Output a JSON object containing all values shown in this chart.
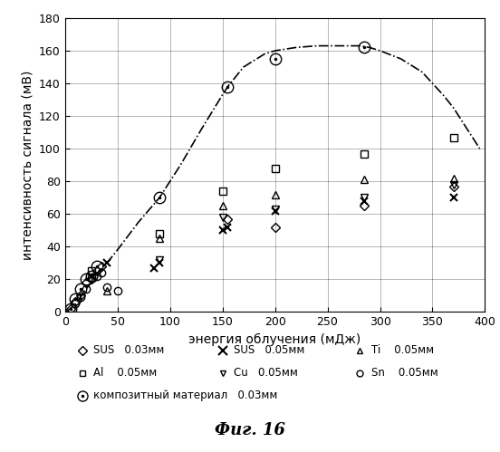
{
  "title": "Фиг. 16",
  "xlabel": "энергия облучения (мДж)",
  "ylabel": "интенсивность сигнала (мВ)",
  "xlim": [
    0,
    400
  ],
  "ylim": [
    0,
    180
  ],
  "xticks": [
    0,
    50,
    100,
    150,
    200,
    250,
    300,
    350,
    400
  ],
  "yticks": [
    0,
    20,
    40,
    60,
    80,
    100,
    120,
    140,
    160,
    180
  ],
  "SUS_003": {
    "x": [
      5,
      10,
      15,
      20,
      25,
      30,
      35,
      155,
      200,
      285,
      370
    ],
    "y": [
      2,
      6,
      10,
      18,
      20,
      25,
      28,
      57,
      52,
      65,
      77
    ]
  },
  "SUS_005": {
    "x": [
      25,
      40,
      85,
      90,
      150,
      155,
      200,
      285,
      370
    ],
    "y": [
      22,
      30,
      27,
      30,
      50,
      52,
      62,
      68,
      70
    ]
  },
  "Al_005": {
    "x": [
      25,
      90,
      150,
      200,
      285,
      370
    ],
    "y": [
      25,
      48,
      74,
      88,
      97,
      107
    ]
  },
  "Cu_005": {
    "x": [
      90,
      150,
      200,
      285,
      370
    ],
    "y": [
      32,
      58,
      63,
      70,
      78
    ]
  },
  "Ti_005": {
    "x": [
      40,
      90,
      150,
      200,
      285,
      370
    ],
    "y": [
      13,
      45,
      65,
      72,
      81,
      82
    ]
  },
  "Sn_005": {
    "x": [
      10,
      15,
      20,
      25,
      30,
      35,
      40,
      50
    ],
    "y": [
      5,
      9,
      14,
      21,
      22,
      24,
      15,
      13
    ]
  },
  "composite_003": {
    "x": [
      5,
      10,
      15,
      20,
      25,
      30,
      90,
      155,
      200,
      285
    ],
    "y": [
      2,
      8,
      14,
      20,
      22,
      28,
      70,
      138,
      155,
      162
    ]
  },
  "curve": {
    "x": [
      0,
      5,
      10,
      15,
      20,
      25,
      30,
      40,
      50,
      70,
      90,
      110,
      130,
      150,
      155,
      170,
      190,
      200,
      220,
      240,
      260,
      280,
      290,
      300,
      320,
      340,
      360,
      370,
      380,
      395
    ],
    "y": [
      0,
      2,
      5,
      9,
      14,
      18,
      23,
      30,
      38,
      55,
      70,
      90,
      112,
      133,
      138,
      150,
      158,
      160,
      162,
      163,
      163,
      163,
      162,
      160,
      155,
      147,
      133,
      125,
      115,
      100
    ]
  },
  "legend_col1": [
    {
      "marker": "D",
      "label": "◇ SUS   0.03мм"
    },
    {
      "marker": "s",
      "label": "□ Al    0.05мм"
    },
    {
      "marker": "circledot",
      "label": "Ⓢ композитный материал   0.03мм"
    }
  ],
  "legend_col2": [
    {
      "marker": "x",
      "label": "× SUS   0.05мм"
    },
    {
      "marker": "v",
      "label": "▽ Cu   0.05мм"
    }
  ],
  "legend_col3": [
    {
      "marker": "^",
      "label": "△ Ti    0.05мм"
    },
    {
      "marker": "o",
      "label": "○ Sn   0.05мм"
    }
  ]
}
